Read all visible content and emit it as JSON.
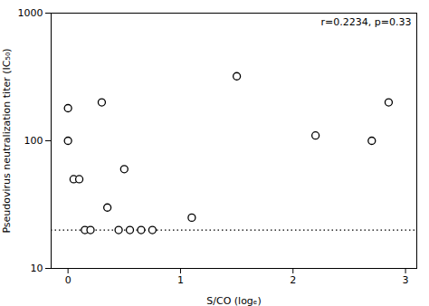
{
  "chart_data": {
    "type": "scatter",
    "x": [
      0.0,
      0.0,
      0.05,
      0.1,
      0.15,
      0.2,
      0.3,
      0.35,
      0.45,
      0.5,
      0.55,
      0.65,
      0.75,
      1.1,
      1.5,
      2.2,
      2.7,
      2.85
    ],
    "values": [
      180,
      100,
      50,
      50,
      20,
      20,
      200,
      30,
      20,
      60,
      20,
      20,
      20,
      25,
      320,
      110,
      100,
      200
    ],
    "color": "#000000",
    "marker": "hollow",
    "xlabel": "S/CO (logₑ)",
    "ylabel": "Pseudovirus neutralization titer (IC₅₀)",
    "annotation": "r=0.2234, p=0.33",
    "xlim": [
      -0.15,
      3.1
    ],
    "xticks": [
      0,
      1,
      2,
      3
    ],
    "ylim": [
      10,
      1000
    ],
    "yticks": [
      10,
      100,
      1000
    ],
    "log": "y",
    "grid": false,
    "hline": {
      "y": 20,
      "color": "#000000",
      "line_style": "dotted"
    }
  }
}
